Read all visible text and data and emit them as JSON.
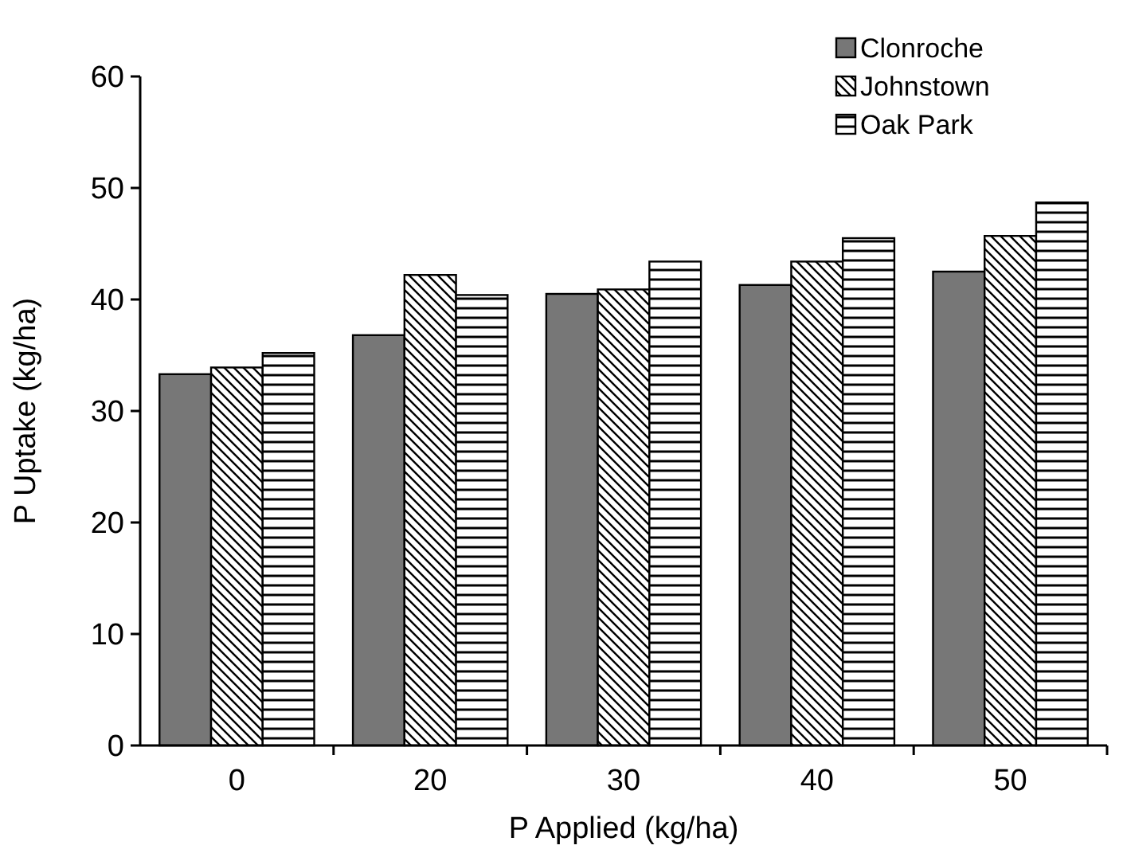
{
  "chart_data": {
    "type": "bar",
    "xlabel": "P Applied (kg/ha)",
    "ylabel": "P Uptake (kg/ha)",
    "categories": [
      "0",
      "20",
      "30",
      "40",
      "50"
    ],
    "series": [
      {
        "name": "Clonroche",
        "color": "#777777",
        "values": [
          33.3,
          36.8,
          40.5,
          41.3,
          42.5
        ]
      },
      {
        "name": "Johnstown",
        "color": "#000000",
        "values": [
          33.9,
          42.2,
          40.9,
          43.4,
          45.7
        ]
      },
      {
        "name": "Oak Park",
        "color": "#000000",
        "values": [
          35.2,
          40.4,
          43.4,
          45.5,
          48.7
        ]
      }
    ],
    "ylim": [
      0,
      60
    ],
    "yticks": [
      0,
      10,
      20,
      30,
      40,
      50,
      60
    ],
    "grid": false,
    "legend": "top right"
  }
}
